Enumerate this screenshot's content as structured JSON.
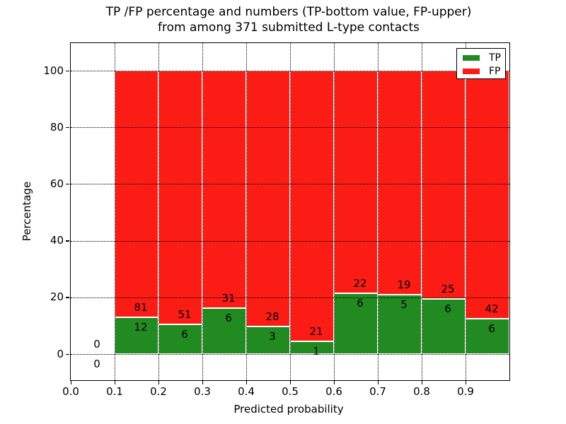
{
  "title": {
    "line1": "TP /FP percentage and numbers (TP-bottom value, FP-upper)",
    "line2": "from among 371 submitted L-type contacts"
  },
  "axes": {
    "xlabel": "Predicted probability",
    "ylabel": "Percentage",
    "x_tick_labels": [
      "0.0",
      "0.1",
      "0.2",
      "0.3",
      "0.4",
      "0.5",
      "0.6",
      "0.7",
      "0.8",
      "0.9"
    ],
    "y_tick_labels": [
      "0",
      "20",
      "40",
      "60",
      "80",
      "100"
    ]
  },
  "legend": {
    "position": "upper right",
    "items": [
      {
        "label": "TP",
        "color": "#218a21"
      },
      {
        "label": "FP",
        "color": "#fb1d15"
      }
    ]
  },
  "colors": {
    "tp_bar": "#218a21",
    "fp_bar": "#fb1d15",
    "bar_edge": "#ffffff",
    "grid": "#000000",
    "text": "#000000",
    "background": "#ffffff"
  },
  "chart_data": {
    "type": "bar",
    "stacked": true,
    "unit": "percent of bin total (TP% bottom, FP% fills to 100)",
    "title": "TP /FP percentage and numbers (TP-bottom value, FP-upper) from among 371 submitted L-type contacts",
    "xlabel": "Predicted probability",
    "ylabel": "Percentage",
    "total_submitted": 371,
    "bin_edges": [
      0.0,
      0.1,
      0.2,
      0.3,
      0.4,
      0.5,
      0.6,
      0.7,
      0.8,
      0.9,
      1.0
    ],
    "bins": [
      {
        "x0": 0.0,
        "x1": 0.1,
        "tp": 0,
        "fp": 0
      },
      {
        "x0": 0.1,
        "x1": 0.2,
        "tp": 12,
        "fp": 81
      },
      {
        "x0": 0.2,
        "x1": 0.3,
        "tp": 6,
        "fp": 51
      },
      {
        "x0": 0.3,
        "x1": 0.4,
        "tp": 6,
        "fp": 31
      },
      {
        "x0": 0.4,
        "x1": 0.5,
        "tp": 3,
        "fp": 28
      },
      {
        "x0": 0.5,
        "x1": 0.6,
        "tp": 1,
        "fp": 21
      },
      {
        "x0": 0.6,
        "x1": 0.7,
        "tp": 6,
        "fp": 22
      },
      {
        "x0": 0.7,
        "x1": 0.8,
        "tp": 5,
        "fp": 19
      },
      {
        "x0": 0.8,
        "x1": 0.9,
        "tp": 6,
        "fp": 25
      },
      {
        "x0": 0.9,
        "x1": 1.0,
        "tp": 6,
        "fp": 42
      }
    ],
    "y_ticks": [
      0,
      20,
      40,
      60,
      80,
      100
    ],
    "x_ticks": [
      0.0,
      0.1,
      0.2,
      0.3,
      0.4,
      0.5,
      0.6,
      0.7,
      0.8,
      0.9
    ],
    "xlim": [
      0.0,
      1.0
    ],
    "ylim": [
      -10,
      110
    ],
    "grid": {
      "visible": true,
      "style": "dotted"
    },
    "legend_position": "upper right"
  }
}
